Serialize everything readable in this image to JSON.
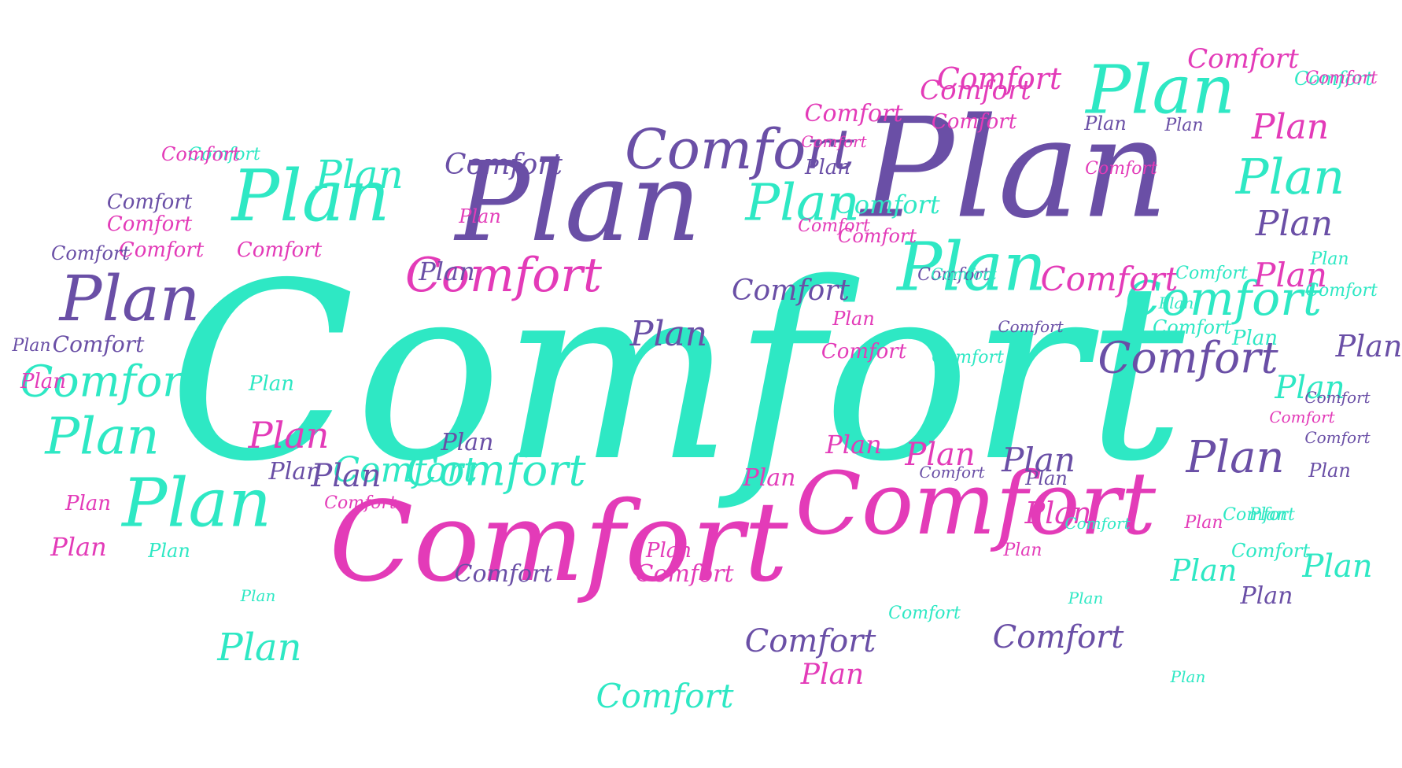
{
  "palette": {
    "turquoise": "#2ee8c4",
    "purple": "#6a4fa6",
    "pink": "#e33bb8",
    "mint": "#5fe8c6",
    "background": "#ffffff"
  },
  "words": [
    {
      "text": "Comfort",
      "color": "turquoise"
    },
    {
      "text": "Plan",
      "color": "purple"
    },
    {
      "text": "Plan",
      "color": "purple"
    },
    {
      "text": "Comfort",
      "color": "pink"
    },
    {
      "text": "Comfort",
      "color": "pink"
    },
    {
      "text": "Plan",
      "color": "turquoise"
    },
    {
      "text": "Plan",
      "color": "turquoise"
    },
    {
      "text": "Plan",
      "color": "turquoise"
    },
    {
      "text": "Plan",
      "color": "turquoise"
    },
    {
      "text": "Plan",
      "color": "purple"
    },
    {
      "text": "Comfort",
      "color": "purple"
    },
    {
      "text": "Comfort",
      "color": "pink"
    },
    {
      "text": "Comfort",
      "color": "turquoise"
    },
    {
      "text": "Plan",
      "color": "turquoise"
    },
    {
      "text": "Plan",
      "color": "turquoise"
    },
    {
      "text": "Plan",
      "color": "turquoise"
    },
    {
      "text": "Comfort",
      "color": "turquoise"
    },
    {
      "text": "Comfort",
      "color": "turquoise"
    },
    {
      "text": "Comfort",
      "color": "turquoise"
    },
    {
      "text": "Comfort",
      "color": "purple"
    },
    {
      "text": "Comfort",
      "color": "pink"
    },
    {
      "text": "Plan",
      "color": "purple"
    },
    {
      "text": "Comfort",
      "color": "pink"
    },
    {
      "text": "Plan",
      "color": "purple"
    },
    {
      "text": "Plan",
      "color": "turquoise"
    },
    {
      "text": "Plan",
      "color": "pink"
    },
    {
      "text": "Plan",
      "color": "pink"
    },
    {
      "text": "Comfort",
      "color": "pink"
    },
    {
      "text": "Comfort",
      "color": "pink"
    },
    {
      "text": "Comfort",
      "color": "pink"
    },
    {
      "text": "Comfort",
      "color": "purple"
    },
    {
      "text": "Comfort",
      "color": "purple"
    },
    {
      "text": "Comfort",
      "color": "purple"
    },
    {
      "text": "Comfort",
      "color": "purple"
    },
    {
      "text": "Comfort",
      "color": "purple"
    },
    {
      "text": "Plan",
      "color": "purple"
    },
    {
      "text": "Plan",
      "color": "purple"
    },
    {
      "text": "Plan",
      "color": "purple"
    },
    {
      "text": "Plan",
      "color": "pink"
    },
    {
      "text": "Plan",
      "color": "pink"
    },
    {
      "text": "Plan",
      "color": "pink"
    },
    {
      "text": "Plan",
      "color": "pink"
    },
    {
      "text": "Plan",
      "color": "turquoise"
    },
    {
      "text": "Plan",
      "color": "turquoise"
    },
    {
      "text": "Plan",
      "color": "turquoise"
    },
    {
      "text": "Comfort",
      "color": "turquoise"
    },
    {
      "text": "Comfort",
      "color": "turquoise"
    },
    {
      "text": "Comfort",
      "color": "turquoise"
    },
    {
      "text": "Comfort",
      "color": "pink"
    },
    {
      "text": "Comfort",
      "color": "pink"
    },
    {
      "text": "Comfort",
      "color": "pink"
    },
    {
      "text": "Comfort",
      "color": "purple"
    },
    {
      "text": "Plan",
      "color": "purple"
    },
    {
      "text": "Plan",
      "color": "purple"
    },
    {
      "text": "Plan",
      "color": "purple"
    },
    {
      "text": "Plan",
      "color": "purple"
    },
    {
      "text": "Plan",
      "color": "purple"
    },
    {
      "text": "Plan",
      "color": "purple"
    },
    {
      "text": "Plan",
      "color": "pink"
    },
    {
      "text": "Plan",
      "color": "pink"
    },
    {
      "text": "Plan",
      "color": "pink"
    },
    {
      "text": "Plan",
      "color": "pink"
    },
    {
      "text": "Plan",
      "color": "pink"
    },
    {
      "text": "Plan",
      "color": "pink"
    },
    {
      "text": "Plan",
      "color": "turquoise"
    },
    {
      "text": "Plan",
      "color": "turquoise"
    },
    {
      "text": "Plan",
      "color": "turquoise"
    },
    {
      "text": "Plan",
      "color": "turquoise"
    },
    {
      "text": "Plan",
      "color": "turquoise"
    },
    {
      "text": "Plan",
      "color": "turquoise"
    },
    {
      "text": "Comfort",
      "color": "turquoise"
    },
    {
      "text": "Comfort",
      "color": "turquoise"
    },
    {
      "text": "Comfort",
      "color": "turquoise"
    },
    {
      "text": "Comfort",
      "color": "turquoise"
    },
    {
      "text": "Comfort",
      "color": "turquoise"
    },
    {
      "text": "Comfort",
      "color": "turquoise"
    },
    {
      "text": "Comfort",
      "color": "pink"
    },
    {
      "text": "Comfort",
      "color": "pink"
    },
    {
      "text": "Comfort",
      "color": "pink"
    },
    {
      "text": "Comfort",
      "color": "pink"
    },
    {
      "text": "Comfort",
      "color": "pink"
    },
    {
      "text": "Comfort",
      "color": "pink"
    },
    {
      "text": "Comfort",
      "color": "purple"
    },
    {
      "text": "Comfort",
      "color": "purple"
    },
    {
      "text": "Comfort",
      "color": "purple"
    },
    {
      "text": "Comfort",
      "color": "purple"
    },
    {
      "text": "Plan",
      "color": "purple"
    },
    {
      "text": "Plan",
      "color": "purple"
    },
    {
      "text": "Plan",
      "color": "purple"
    },
    {
      "text": "Plan",
      "color": "purple"
    },
    {
      "text": "Plan",
      "color": "pink"
    },
    {
      "text": "Plan",
      "color": "pink"
    },
    {
      "text": "Plan",
      "color": "pink"
    },
    {
      "text": "Plan",
      "color": "turquoise"
    },
    {
      "text": "Plan",
      "color": "turquoise"
    },
    {
      "text": "Plan",
      "color": "turquoise"
    },
    {
      "text": "Comfort",
      "color": "turquoise"
    },
    {
      "text": "Comfort",
      "color": "turquoise"
    },
    {
      "text": "Comfort",
      "color": "turquoise"
    },
    {
      "text": "Comfort",
      "color": "turquoise"
    },
    {
      "text": "Comfort",
      "color": "pink"
    },
    {
      "text": "Comfort",
      "color": "pink"
    },
    {
      "text": "Comfort",
      "color": "pink"
    },
    {
      "text": "Comfort",
      "color": "pink"
    },
    {
      "text": "Comfort",
      "color": "pink"
    },
    {
      "text": "Comfort",
      "color": "purple"
    },
    {
      "text": "Comfort",
      "color": "purple"
    },
    {
      "text": "Comfort",
      "color": "purple"
    },
    {
      "text": "Plan",
      "color": "purple"
    },
    {
      "text": "Plan",
      "color": "pink"
    },
    {
      "text": "Plan",
      "color": "turquoise"
    }
  ]
}
